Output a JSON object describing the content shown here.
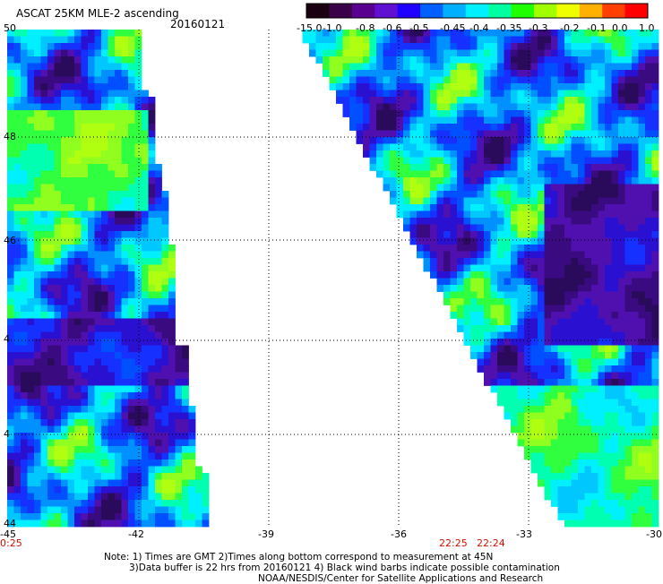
{
  "header": {
    "title": "ASCAT 25KM MLE-2 ascending",
    "date": "20160121"
  },
  "colorbar": {
    "labels": [
      "-15.0",
      "-1.0",
      "-0.8",
      "-0.6",
      "-0.5",
      "-0.45",
      "-0.4",
      "-0.35",
      "-0.3",
      "-0.2",
      "-0.1",
      "0.0",
      "1.0"
    ],
    "colors": [
      "#1a0010",
      "#3a0048",
      "#5a0090",
      "#6010d0",
      "#2000ff",
      "#0060ff",
      "#00b0ff",
      "#00f0ff",
      "#00ffa0",
      "#20ff00",
      "#a0ff00",
      "#f0ff00",
      "#ffb000",
      "#ff4000",
      "#ff0000"
    ]
  },
  "axes": {
    "lon_labels": [
      "-45",
      "-42",
      "-39",
      "-36",
      "-33",
      "-30"
    ],
    "lat_labels": [
      "50",
      "48",
      "46",
      "4",
      "4",
      "44"
    ]
  },
  "times": {
    "left": "0:25",
    "mid_a": "22:25",
    "mid_b": "22:24"
  },
  "notes": {
    "line1": "Note: 1) Times are GMT 2)Times along bottom correspond to measurement at 45N",
    "line2": "3)Data buffer is 22 hrs from 20160121 4) Black wind barbs indicate possible contamination",
    "line3": "NOAA/NESDIS/Center for Satellite Applications and Research"
  }
}
